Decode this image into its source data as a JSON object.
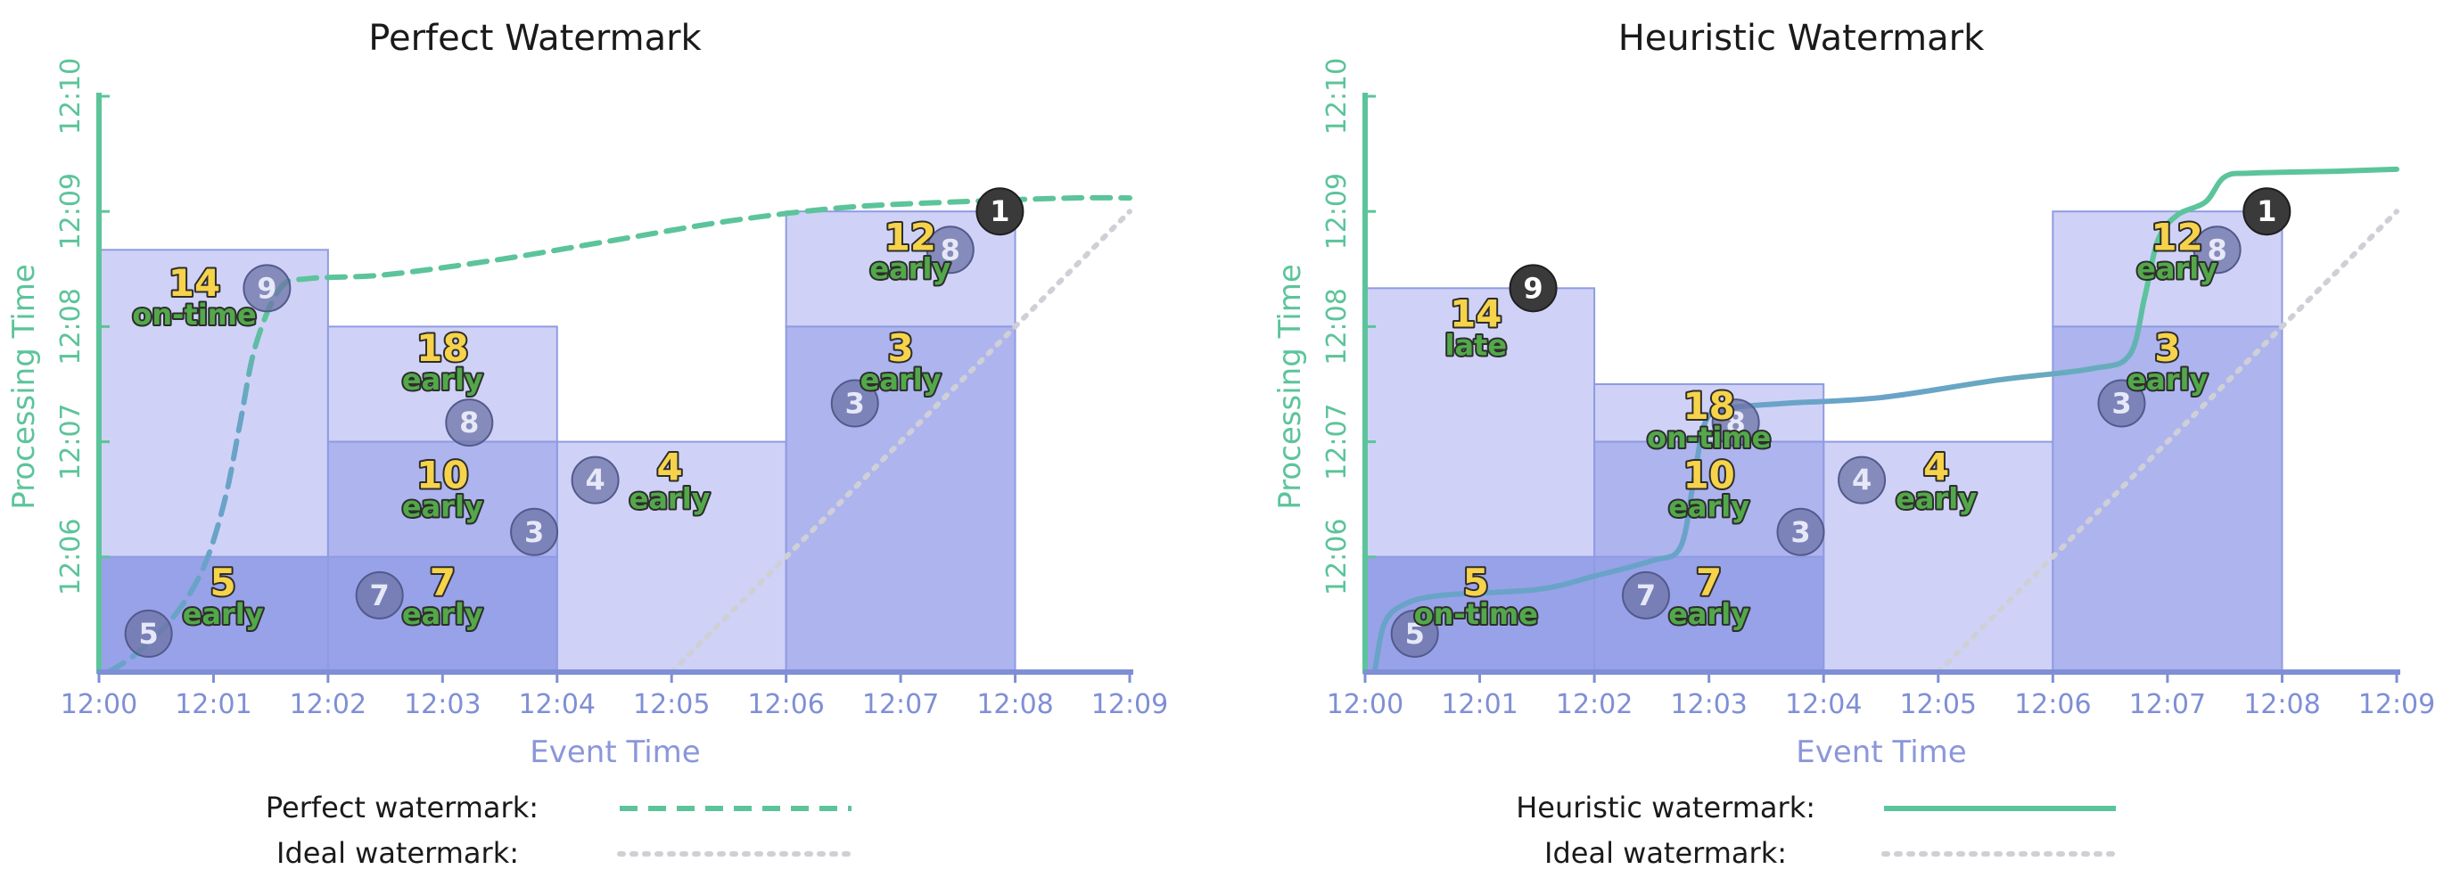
{
  "charts": [
    {
      "title": "Perfect Watermark",
      "watermark_style": "dashed",
      "legend": [
        {
          "label": "Perfect watermark:",
          "style": "dashed",
          "color": "#5cc49a"
        },
        {
          "label": "Ideal watermark:",
          "style": "dotted",
          "color": "#cfcfd6"
        }
      ]
    },
    {
      "title": "Heuristic Watermark",
      "watermark_style": "solid",
      "legend": [
        {
          "label": "Heuristic watermark:",
          "style": "solid",
          "color": "#5cc49a"
        },
        {
          "label": "Ideal watermark:",
          "style": "dotted",
          "color": "#cfcfd6"
        }
      ]
    }
  ],
  "chart_data": [
    {
      "type": "scatter",
      "title": "Perfect Watermark",
      "xlabel": "Event Time",
      "ylabel": "Processing Time",
      "x_ticks": [
        "12:00",
        "12:01",
        "12:02",
        "12:03",
        "12:04",
        "12:05",
        "12:06",
        "12:07",
        "12:08",
        "12:09"
      ],
      "y_ticks": [
        "12:06",
        "12:07",
        "12:08",
        "12:09",
        "12:10"
      ],
      "xlim": [
        "12:00",
        "12:09"
      ],
      "ylim": [
        "12:05",
        "12:10"
      ],
      "inputs": [
        {
          "value": 5,
          "event_time": "12:00:26",
          "processing_time": "12:05:20",
          "style": "normal"
        },
        {
          "value": 9,
          "event_time": "12:01:28",
          "processing_time": "12:08:20",
          "style": "normal"
        },
        {
          "value": 7,
          "event_time": "12:02:27",
          "processing_time": "12:05:40",
          "style": "normal"
        },
        {
          "value": 8,
          "event_time": "12:03:14",
          "processing_time": "12:07:10",
          "style": "normal"
        },
        {
          "value": 3,
          "event_time": "12:03:48",
          "processing_time": "12:06:13",
          "style": "normal"
        },
        {
          "value": 4,
          "event_time": "12:04:20",
          "processing_time": "12:06:40",
          "style": "normal"
        },
        {
          "value": 3,
          "event_time": "12:06:36",
          "processing_time": "12:07:20",
          "style": "normal"
        },
        {
          "value": 8,
          "event_time": "12:07:26",
          "processing_time": "12:08:40",
          "style": "normal"
        },
        {
          "value": 1,
          "event_time": "12:07:52",
          "processing_time": "12:09:00",
          "style": "dark"
        }
      ],
      "panes": [
        {
          "window": [
            "12:00",
            "12:02"
          ],
          "proc": [
            "12:05",
            "12:06"
          ],
          "shade": "dark",
          "value": "5",
          "status": "early",
          "label_x": "12:01:05",
          "label_y": "12:05:40"
        },
        {
          "window": [
            "12:00",
            "12:02"
          ],
          "proc": [
            "12:06",
            "12:08:40"
          ],
          "shade": "light",
          "value": "14",
          "status": "on-time",
          "label_x": "12:00:50",
          "label_y": "12:08:16"
        },
        {
          "window": [
            "12:02",
            "12:04"
          ],
          "proc": [
            "12:05",
            "12:06"
          ],
          "shade": "dark",
          "value": "7",
          "status": "early",
          "label_x": "12:03:00",
          "label_y": "12:05:40"
        },
        {
          "window": [
            "12:02",
            "12:04"
          ],
          "proc": [
            "12:06",
            "12:07"
          ],
          "shade": "mid",
          "value": "10",
          "status": "early",
          "label_x": "12:03:00",
          "label_y": "12:06:36"
        },
        {
          "window": [
            "12:02",
            "12:04"
          ],
          "proc": [
            "12:07",
            "12:08"
          ],
          "shade": "light",
          "value": "18",
          "status": "early",
          "label_x": "12:03:00",
          "label_y": "12:07:42"
        },
        {
          "window": [
            "12:04",
            "12:06"
          ],
          "proc": [
            "12:05",
            "12:07"
          ],
          "shade": "light",
          "value": "4",
          "status": "early",
          "label_x": "12:04:59",
          "label_y": "12:06:40"
        },
        {
          "window": [
            "12:06",
            "12:08"
          ],
          "proc": [
            "12:05",
            "12:08"
          ],
          "shade": "mid",
          "value": "3",
          "status": "early",
          "label_x": "12:07:00",
          "label_y": "12:07:42"
        },
        {
          "window": [
            "12:06",
            "12:08"
          ],
          "proc": [
            "12:08",
            "12:09"
          ],
          "shade": "light",
          "value": "12",
          "status": "early",
          "label_x": "12:07:05",
          "label_y": "12:08:40"
        }
      ],
      "watermark_curve": [
        [
          "12:00:05",
          "12:05:00"
        ],
        [
          "12:00:20",
          "12:05:10"
        ],
        [
          "12:00:40",
          "12:05:30"
        ],
        [
          "12:00:55",
          "12:05:55"
        ],
        [
          "12:01:06",
          "12:06:30"
        ],
        [
          "12:01:14",
          "12:07:10"
        ],
        [
          "12:01:22",
          "12:07:50"
        ],
        [
          "12:01:35",
          "12:08:20"
        ],
        [
          "12:01:50",
          "12:08:25"
        ],
        [
          "12:02:30",
          "12:08:27"
        ],
        [
          "12:03:30",
          "12:08:35"
        ],
        [
          "12:04:30",
          "12:08:45"
        ],
        [
          "12:05:30",
          "12:08:55"
        ],
        [
          "12:06:30",
          "12:09:02"
        ],
        [
          "12:07:30",
          "12:09:05"
        ],
        [
          "12:08:30",
          "12:09:07"
        ],
        [
          "12:09:00",
          "12:09:07"
        ]
      ],
      "ideal_watermark": [
        [
          "12:05:00",
          "12:05:00"
        ],
        [
          "12:09:00",
          "12:09:00"
        ]
      ]
    },
    {
      "type": "scatter",
      "title": "Heuristic Watermark",
      "xlabel": "Event Time",
      "ylabel": "Processing Time",
      "x_ticks": [
        "12:00",
        "12:01",
        "12:02",
        "12:03",
        "12:04",
        "12:05",
        "12:06",
        "12:07",
        "12:08",
        "12:09"
      ],
      "y_ticks": [
        "12:06",
        "12:07",
        "12:08",
        "12:09",
        "12:10"
      ],
      "xlim": [
        "12:00",
        "12:09"
      ],
      "ylim": [
        "12:05",
        "12:10"
      ],
      "inputs": [
        {
          "value": 5,
          "event_time": "12:00:26",
          "processing_time": "12:05:20",
          "style": "normal"
        },
        {
          "value": 9,
          "event_time": "12:01:28",
          "processing_time": "12:08:20",
          "style": "dark"
        },
        {
          "value": 7,
          "event_time": "12:02:27",
          "processing_time": "12:05:40",
          "style": "normal"
        },
        {
          "value": 8,
          "event_time": "12:03:14",
          "processing_time": "12:07:10",
          "style": "normal"
        },
        {
          "value": 3,
          "event_time": "12:03:48",
          "processing_time": "12:06:13",
          "style": "normal"
        },
        {
          "value": 4,
          "event_time": "12:04:20",
          "processing_time": "12:06:40",
          "style": "normal"
        },
        {
          "value": 3,
          "event_time": "12:06:36",
          "processing_time": "12:07:20",
          "style": "normal"
        },
        {
          "value": 8,
          "event_time": "12:07:26",
          "processing_time": "12:08:40",
          "style": "normal"
        },
        {
          "value": 1,
          "event_time": "12:07:52",
          "processing_time": "12:09:00",
          "style": "dark"
        }
      ],
      "panes": [
        {
          "window": [
            "12:00",
            "12:02"
          ],
          "proc": [
            "12:05",
            "12:06"
          ],
          "shade": "dark",
          "value": "5",
          "status": "on-time",
          "label_x": "12:00:58",
          "label_y": "12:05:40"
        },
        {
          "window": [
            "12:00",
            "12:02"
          ],
          "proc": [
            "12:06",
            "12:08:20"
          ],
          "shade": "light",
          "value": "14",
          "status": "late",
          "label_x": "12:00:58",
          "label_y": "12:08:00"
        },
        {
          "window": [
            "12:02",
            "12:04"
          ],
          "proc": [
            "12:05",
            "12:06"
          ],
          "shade": "dark",
          "value": "7",
          "status": "early",
          "label_x": "12:03:00",
          "label_y": "12:05:40"
        },
        {
          "window": [
            "12:02",
            "12:04"
          ],
          "proc": [
            "12:06",
            "12:07"
          ],
          "shade": "mid",
          "value": "10",
          "status": "early",
          "label_x": "12:03:00",
          "label_y": "12:06:36"
        },
        {
          "window": [
            "12:02",
            "12:04"
          ],
          "proc": [
            "12:07",
            "12:07:30"
          ],
          "shade": "light",
          "value": "18",
          "status": "on-time",
          "label_x": "12:03:00",
          "label_y": "12:07:12"
        },
        {
          "window": [
            "12:04",
            "12:06"
          ],
          "proc": [
            "12:05",
            "12:07"
          ],
          "shade": "light",
          "value": "4",
          "status": "early",
          "label_x": "12:04:59",
          "label_y": "12:06:40"
        },
        {
          "window": [
            "12:06",
            "12:08"
          ],
          "proc": [
            "12:05",
            "12:08"
          ],
          "shade": "mid",
          "value": "3",
          "status": "early",
          "label_x": "12:07:00",
          "label_y": "12:07:42"
        },
        {
          "window": [
            "12:06",
            "12:08"
          ],
          "proc": [
            "12:08",
            "12:09"
          ],
          "shade": "light",
          "value": "12",
          "status": "early",
          "label_x": "12:07:05",
          "label_y": "12:08:40"
        }
      ],
      "watermark_curve": [
        [
          "12:00:05",
          "12:05:00"
        ],
        [
          "12:00:10",
          "12:05:25"
        ],
        [
          "12:00:20",
          "12:05:35"
        ],
        [
          "12:00:40",
          "12:05:40"
        ],
        [
          "12:01:30",
          "12:05:43"
        ],
        [
          "12:02:00",
          "12:05:50"
        ],
        [
          "12:02:30",
          "12:05:58"
        ],
        [
          "12:02:45",
          "12:06:05"
        ],
        [
          "12:02:52",
          "12:06:40"
        ],
        [
          "12:02:58",
          "12:07:10"
        ],
        [
          "12:03:08",
          "12:07:17"
        ],
        [
          "12:03:40",
          "12:07:20"
        ],
        [
          "12:04:30",
          "12:07:23"
        ],
        [
          "12:05:30",
          "12:07:32"
        ],
        [
          "12:06:20",
          "12:07:38"
        ],
        [
          "12:06:40",
          "12:07:45"
        ],
        [
          "12:06:48",
          "12:08:15"
        ],
        [
          "12:06:55",
          "12:08:45"
        ],
        [
          "12:07:05",
          "12:08:58"
        ],
        [
          "12:07:20",
          "12:09:05"
        ],
        [
          "12:07:30",
          "12:09:18"
        ],
        [
          "12:07:45",
          "12:09:20"
        ],
        [
          "12:08:30",
          "12:09:21"
        ],
        [
          "12:09:00",
          "12:09:22"
        ]
      ],
      "ideal_watermark": [
        [
          "12:05:00",
          "12:05:00"
        ],
        [
          "12:09:00",
          "12:09:00"
        ]
      ]
    }
  ],
  "colors": {
    "axis_green": "#5cc49a",
    "axis_blue": "#7f8fd6",
    "pane_light": "#cfd2f6",
    "pane_mid": "#adb4ee",
    "pane_dark": "#98a2e8",
    "pane_stroke": "#8f9be2",
    "num_yellow": "#f6d34a",
    "label_green": "#53a84a",
    "text_outline": "#2d2d2d",
    "circle_fill": "#6c73a6",
    "circle_dark": "#3a3a3a",
    "watermark": "#5cc49a",
    "watermark_blue": "#6aa3c8",
    "ideal": "#cfcfd6"
  }
}
